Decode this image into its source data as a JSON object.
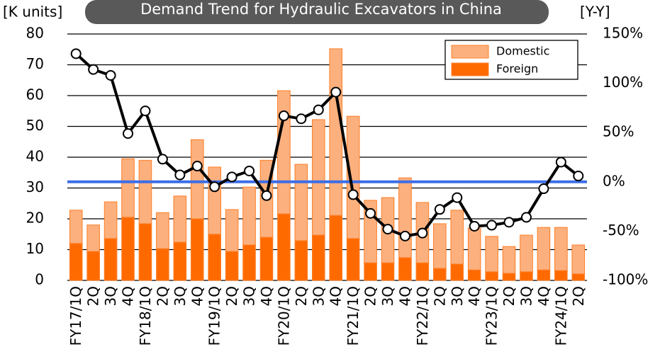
{
  "chart_data": {
    "type": "bar-line",
    "title": "Demand Trend for Hydraulic Excavators in China",
    "y_axis_label": "[K units]",
    "y2_axis_label": "[Y-Y]",
    "categories": [
      "FY17/1Q",
      "2Q",
      "3Q",
      "4Q",
      "FY18/1Q",
      "2Q",
      "3Q",
      "4Q",
      "FY19/1Q",
      "2Q",
      "3Q",
      "4Q",
      "FY20/1Q",
      "2Q",
      "3Q",
      "4Q",
      "FY21/1Q",
      "2Q",
      "3Q",
      "4Q",
      "FY22/1Q",
      "2Q",
      "3Q",
      "4Q",
      "FY23/1Q",
      "2Q",
      "3Q",
      "4Q",
      "FY24/1Q",
      "2Q"
    ],
    "series": [
      {
        "name": "Foreign",
        "color": "#ff6a00",
        "stack": true,
        "values": [
          12,
          9.4,
          13.6,
          20.5,
          18.4,
          10.3,
          12.4,
          20,
          15,
          9.4,
          11.5,
          14,
          21.6,
          12.9,
          14.7,
          21.1,
          13.6,
          5.7,
          5.7,
          7.4,
          5.7,
          3.9,
          5.3,
          3.4,
          2.8,
          2.3,
          2.8,
          3.4,
          3.2,
          2.1
        ]
      },
      {
        "name": "Domestic",
        "color": "#fbb07e",
        "stack": true,
        "values": [
          10.8,
          8.6,
          11.9,
          19,
          20.6,
          11.7,
          15,
          25.7,
          21.8,
          13.6,
          18.8,
          25,
          40,
          24.8,
          37.5,
          54.1,
          39.7,
          20.3,
          21.2,
          25.9,
          19.6,
          14.5,
          17.5,
          13.6,
          11.5,
          8.7,
          11.9,
          13.8,
          14,
          9.4
        ]
      },
      {
        "type": "line",
        "axis": "y2",
        "color": "#000000",
        "values": [
          130,
          114,
          108,
          49,
          72,
          23,
          7,
          16,
          -5,
          5,
          11,
          -14,
          67,
          64,
          73,
          91,
          -13,
          -32,
          -48,
          -55,
          -52,
          -28,
          -16,
          -45,
          -44,
          -41,
          -36,
          -7,
          20,
          6
        ]
      }
    ],
    "ylim": [
      0,
      80
    ],
    "yticks": [
      0,
      10,
      20,
      30,
      40,
      50,
      60,
      70,
      80
    ],
    "y2lim": [
      -100,
      150
    ],
    "y2ticks": [
      {
        "value": -100,
        "label": "-100%"
      },
      {
        "value": -50,
        "label": "-50%"
      },
      {
        "value": 0,
        "label": "0%"
      },
      {
        "value": 50,
        "label": "50%"
      },
      {
        "value": 100,
        "label": "100%"
      },
      {
        "value": 150,
        "label": "150%"
      }
    ],
    "grid": true,
    "legend": "upper right"
  }
}
